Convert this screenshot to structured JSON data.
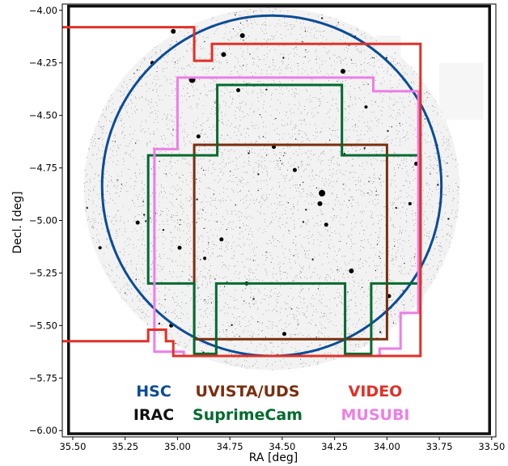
{
  "chart_data": {
    "type": "survey-footprint-map",
    "xlabel": "RA [deg]",
    "ylabel": "Decl. [deg]",
    "xlim": [
      35.55,
      33.48
    ],
    "ylim": [
      -6.03,
      -3.97
    ],
    "x_ticks": [
      35.5,
      35.25,
      35.0,
      34.75,
      34.5,
      34.25,
      34.0,
      33.75,
      33.5
    ],
    "x_tick_labels": [
      "35.50",
      "35.25",
      "35.00",
      "34.75",
      "34.50",
      "34.25",
      "34.00",
      "33.75",
      "33.50"
    ],
    "y_ticks": [
      -4.0,
      -4.25,
      -4.5,
      -4.75,
      -5.0,
      -5.25,
      -5.5,
      -5.75,
      -6.0
    ],
    "y_tick_labels": [
      "−4.00",
      "−4.25",
      "−4.50",
      "−4.75",
      "−5.00",
      "−5.25",
      "−5.50",
      "−5.75",
      "−6.00"
    ],
    "background_field": {
      "center": [
        34.55,
        -4.85
      ],
      "radius_deg": 0.88
    },
    "surveys": [
      {
        "name": "HSC",
        "color": "#0b4c96",
        "shape": "circle",
        "center": [
          34.55,
          -4.835
        ],
        "radius_deg": 0.81
      },
      {
        "name": "IRAC",
        "color": "#111111",
        "shape": "frame",
        "ra_range": [
          35.52,
          33.51
        ],
        "dec_range": [
          -6.015,
          -3.98
        ]
      },
      {
        "name": "UVISTA/UDS",
        "color": "#7a2e0e",
        "shape": "polygon",
        "points": [
          [
            34.92,
            -4.64
          ],
          [
            34.0,
            -4.64
          ],
          [
            34.0,
            -5.565
          ],
          [
            34.92,
            -5.565
          ]
        ]
      },
      {
        "name": "SuprimeCam",
        "color": "#006a2e",
        "shape": "polygon",
        "points": [
          [
            34.81,
            -4.355
          ],
          [
            34.215,
            -4.355
          ],
          [
            34.215,
            -4.69
          ],
          [
            33.84,
            -4.69
          ],
          [
            33.84,
            -5.3
          ],
          [
            34.075,
            -5.3
          ],
          [
            34.075,
            -5.635
          ],
          [
            34.2,
            -5.635
          ],
          [
            34.2,
            -5.3
          ],
          [
            34.815,
            -5.3
          ],
          [
            34.815,
            -5.635
          ],
          [
            34.92,
            -5.635
          ],
          [
            34.92,
            -5.3
          ],
          [
            35.14,
            -5.3
          ],
          [
            35.14,
            -4.69
          ],
          [
            34.81,
            -4.69
          ]
        ]
      },
      {
        "name": "MUSUBI",
        "color": "#ec7fe6",
        "shape": "polygon",
        "points": [
          [
            35.0,
            -4.32
          ],
          [
            34.065,
            -4.32
          ],
          [
            34.065,
            -4.385
          ],
          [
            33.85,
            -4.385
          ],
          [
            33.85,
            -5.44
          ],
          [
            33.935,
            -5.44
          ],
          [
            33.935,
            -5.61
          ],
          [
            34.035,
            -5.61
          ],
          [
            34.035,
            -5.645
          ],
          [
            34.97,
            -5.645
          ],
          [
            34.97,
            -5.625
          ],
          [
            35.11,
            -5.625
          ],
          [
            35.11,
            -4.66
          ],
          [
            35.0,
            -4.66
          ]
        ]
      },
      {
        "name": "VIDEO",
        "color": "#e03127",
        "shape": "polyline",
        "points": [
          [
            35.55,
            -4.08
          ],
          [
            34.92,
            -4.08
          ],
          [
            34.92,
            -4.24
          ],
          [
            34.835,
            -4.24
          ],
          [
            34.835,
            -4.16
          ],
          [
            33.84,
            -4.16
          ],
          [
            33.84,
            -5.645
          ],
          [
            35.02,
            -5.645
          ],
          [
            35.02,
            -5.575
          ],
          [
            35.055,
            -5.575
          ],
          [
            35.055,
            -5.52
          ],
          [
            35.14,
            -5.52
          ],
          [
            35.14,
            -5.575
          ],
          [
            35.55,
            -5.575
          ]
        ]
      }
    ],
    "legend": {
      "position": "bottom-center",
      "rows": [
        [
          "HSC",
          "UVISTA/UDS",
          "VIDEO"
        ],
        [
          "IRAC",
          "SuprimeCam",
          "MUSUBI"
        ]
      ]
    }
  }
}
